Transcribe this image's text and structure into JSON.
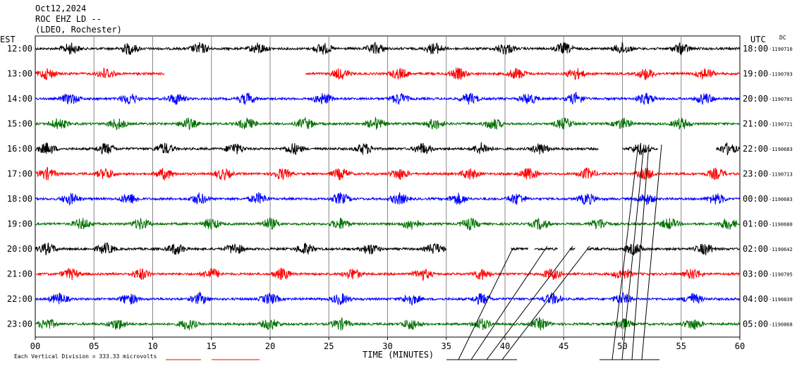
{
  "header": {
    "date": "Oct12,2024",
    "station": "ROC EHZ LD --",
    "network": "(LDEO, Rochester)"
  },
  "axes": {
    "left_label": "EST",
    "right_label": "UTC",
    "dc_label": "DC",
    "xlabel": "TIME (MINUTES)",
    "x_ticks": [
      "00",
      "05",
      "10",
      "15",
      "20",
      "25",
      "30",
      "35",
      "40",
      "45",
      "50",
      "55",
      "60"
    ],
    "footer_note": "Each Vertical Division =  333.33 microvolts"
  },
  "colors": {
    "cycle": [
      "#000000",
      "#ff0000",
      "#0000ff",
      "#007000"
    ],
    "grid": "#888888"
  },
  "chart_data": {
    "type": "line",
    "title": "",
    "xlabel": "TIME (MINUTES)",
    "xlim": [
      0,
      60
    ],
    "rows": [
      {
        "est": "12:00",
        "utc": "18:00",
        "dc": "-1190710",
        "color": "#000000",
        "segments": [
          [
            0,
            60
          ]
        ],
        "bursts": [
          3,
          8,
          14,
          19,
          24.5,
          29,
          34,
          40,
          45,
          50,
          55
        ]
      },
      {
        "est": "13:00",
        "utc": "19:00",
        "dc": "-1190703",
        "color": "#ff0000",
        "segments": [
          [
            0,
            11
          ],
          [
            23,
            60
          ]
        ],
        "bursts": [
          1,
          6,
          26,
          31,
          36,
          41,
          46,
          52,
          57
        ]
      },
      {
        "est": "14:00",
        "utc": "20:00",
        "dc": "-1190701",
        "color": "#0000ff",
        "segments": [
          [
            0,
            60
          ]
        ],
        "bursts": [
          3,
          8,
          12,
          18,
          24.5,
          31,
          37,
          42,
          46,
          52,
          57
        ]
      },
      {
        "est": "15:00",
        "utc": "21:00",
        "dc": "-1190721",
        "color": "#007000",
        "segments": [
          [
            0,
            60
          ]
        ],
        "bursts": [
          2,
          7,
          13,
          18,
          23,
          29,
          34,
          39,
          45,
          50,
          55
        ]
      },
      {
        "est": "16:00",
        "utc": "22:00",
        "dc": "-1190683",
        "color": "#000000",
        "segments": [
          [
            0,
            48
          ],
          [
            50,
            53
          ],
          [
            58,
            60
          ]
        ],
        "bursts": [
          1,
          6,
          11,
          17,
          22,
          28,
          33,
          38,
          43,
          51.5,
          59
        ]
      },
      {
        "est": "17:00",
        "utc": "23:00",
        "dc": "-1190713",
        "color": "#ff0000",
        "segments": [
          [
            0,
            60
          ]
        ],
        "bursts": [
          1,
          6,
          11,
          16,
          21,
          26,
          31,
          37,
          42,
          47,
          52,
          58
        ]
      },
      {
        "est": "18:00",
        "utc": "00:00",
        "dc": "-1190683",
        "color": "#0000ff",
        "segments": [
          [
            0,
            60
          ]
        ],
        "bursts": [
          3,
          8,
          14,
          19,
          26,
          31,
          36,
          41,
          47,
          52,
          58
        ]
      },
      {
        "est": "19:00",
        "utc": "01:00",
        "dc": "-1190680",
        "color": "#007000",
        "segments": [
          [
            0,
            60
          ]
        ],
        "bursts": [
          4,
          9,
          15,
          20,
          26,
          32,
          37,
          43,
          48,
          54,
          59
        ]
      },
      {
        "est": "20:00",
        "utc": "02:00",
        "dc": "-1190642",
        "color": "#000000",
        "segments": [
          [
            0,
            35
          ],
          [
            40.5,
            42
          ],
          [
            42.5,
            44.5
          ],
          [
            45.5,
            46
          ],
          [
            47,
            60
          ]
        ],
        "bursts": [
          1,
          6,
          12,
          17,
          23,
          28.5,
          34,
          51,
          57
        ]
      },
      {
        "est": "21:00",
        "utc": "03:00",
        "dc": "-1190705",
        "color": "#ff0000",
        "segments": [
          [
            0,
            60
          ]
        ],
        "bursts": [
          3,
          9,
          15,
          21,
          27,
          33,
          38,
          44,
          50,
          56
        ]
      },
      {
        "est": "22:00",
        "utc": "04:00",
        "dc": "-1190839",
        "color": "#0000ff",
        "segments": [
          [
            0,
            60
          ]
        ],
        "bursts": [
          2,
          8,
          14,
          20,
          26,
          32,
          38,
          44,
          50,
          56
        ]
      },
      {
        "est": "23:00",
        "utc": "05:00",
        "dc": "-1190868",
        "color": "#007000",
        "segments": [
          [
            0,
            60
          ]
        ],
        "bursts": [
          1,
          7,
          13,
          20,
          26,
          32,
          38,
          43,
          50,
          56
        ]
      }
    ]
  }
}
